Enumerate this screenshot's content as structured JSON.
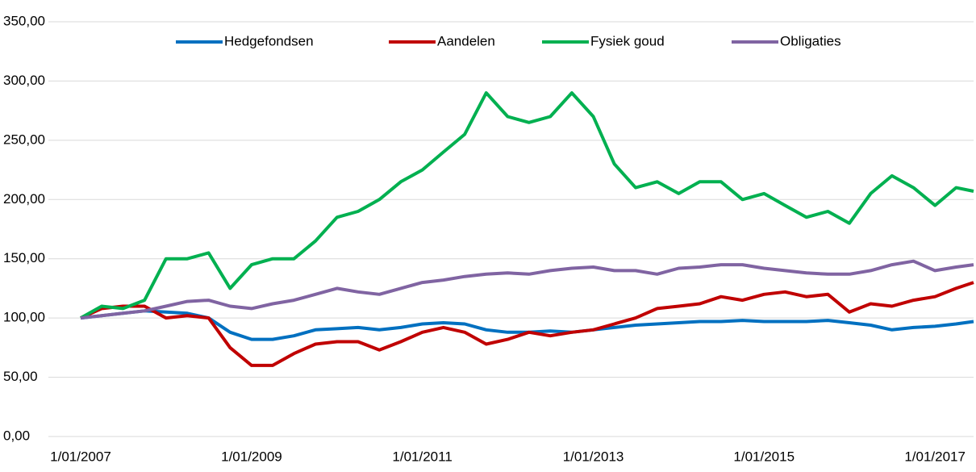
{
  "chart_data": {
    "type": "line",
    "x": [
      "2007-01-01",
      "2007-04-01",
      "2007-07-01",
      "2007-10-01",
      "2008-01-01",
      "2008-04-01",
      "2008-07-01",
      "2008-10-01",
      "2009-01-01",
      "2009-04-01",
      "2009-07-01",
      "2009-10-01",
      "2010-01-01",
      "2010-04-01",
      "2010-07-01",
      "2010-10-01",
      "2011-01-01",
      "2011-04-01",
      "2011-07-01",
      "2011-10-01",
      "2012-01-01",
      "2012-04-01",
      "2012-07-01",
      "2012-10-01",
      "2013-01-01",
      "2013-04-01",
      "2013-07-01",
      "2013-10-01",
      "2014-01-01",
      "2014-04-01",
      "2014-07-01",
      "2014-10-01",
      "2015-01-01",
      "2015-04-01",
      "2015-07-01",
      "2015-10-01",
      "2016-01-01",
      "2016-04-01",
      "2016-07-01",
      "2016-10-01",
      "2017-01-01",
      "2017-04-01",
      "2017-06-15"
    ],
    "series": [
      {
        "name": "Hedgefondsen",
        "color": "#0070c0",
        "values": [
          100,
          102,
          104,
          106,
          105,
          104,
          100,
          88,
          82,
          82,
          85,
          90,
          91,
          92,
          90,
          92,
          95,
          96,
          95,
          90,
          88,
          88,
          89,
          88,
          90,
          92,
          94,
          95,
          96,
          97,
          97,
          98,
          97,
          97,
          97,
          98,
          96,
          94,
          90,
          92,
          93,
          95,
          97
        ]
      },
      {
        "name": "Aandelen",
        "color": "#c00000",
        "values": [
          100,
          108,
          110,
          110,
          100,
          102,
          100,
          75,
          60,
          60,
          70,
          78,
          80,
          80,
          73,
          80,
          88,
          92,
          88,
          78,
          82,
          88,
          85,
          88,
          90,
          95,
          100,
          108,
          110,
          112,
          118,
          115,
          120,
          122,
          118,
          120,
          105,
          112,
          110,
          115,
          118,
          125,
          130
        ]
      },
      {
        "name": "Fysiek goud",
        "color": "#00b050",
        "values": [
          100,
          110,
          108,
          115,
          150,
          150,
          155,
          125,
          145,
          150,
          150,
          165,
          185,
          190,
          200,
          215,
          225,
          240,
          255,
          290,
          270,
          265,
          270,
          290,
          270,
          230,
          210,
          215,
          205,
          215,
          215,
          200,
          205,
          195,
          185,
          190,
          180,
          205,
          220,
          210,
          195,
          210,
          207
        ]
      },
      {
        "name": "Obligaties",
        "color": "#8064a2",
        "values": [
          100,
          102,
          104,
          106,
          110,
          114,
          115,
          110,
          108,
          112,
          115,
          120,
          125,
          122,
          120,
          125,
          130,
          132,
          135,
          137,
          138,
          137,
          140,
          142,
          143,
          140,
          140,
          137,
          142,
          143,
          145,
          145,
          142,
          140,
          138,
          137,
          137,
          140,
          145,
          148,
          140,
          143,
          145
        ]
      }
    ],
    "xlim": [
      "2007-01-01",
      "2017-06-15"
    ],
    "xticks": [
      {
        "value": "2007-01-01",
        "label": "1/01/2007"
      },
      {
        "value": "2009-01-01",
        "label": "1/01/2009"
      },
      {
        "value": "2011-01-01",
        "label": "1/01/2011"
      },
      {
        "value": "2013-01-01",
        "label": "1/01/2013"
      },
      {
        "value": "2015-01-01",
        "label": "1/01/2015"
      },
      {
        "value": "2017-01-01",
        "label": "1/01/2017"
      }
    ],
    "ylim": [
      0,
      350
    ],
    "yticks": [
      {
        "value": 0,
        "label": "0,00"
      },
      {
        "value": 50,
        "label": "50,00"
      },
      {
        "value": 100,
        "label": "100,00"
      },
      {
        "value": 150,
        "label": "150,00"
      },
      {
        "value": 200,
        "label": "200,00"
      },
      {
        "value": 250,
        "label": "250,00"
      },
      {
        "value": 300,
        "label": "300,00"
      },
      {
        "value": 350,
        "label": "350,00"
      }
    ],
    "grid": true,
    "legend": "top"
  }
}
